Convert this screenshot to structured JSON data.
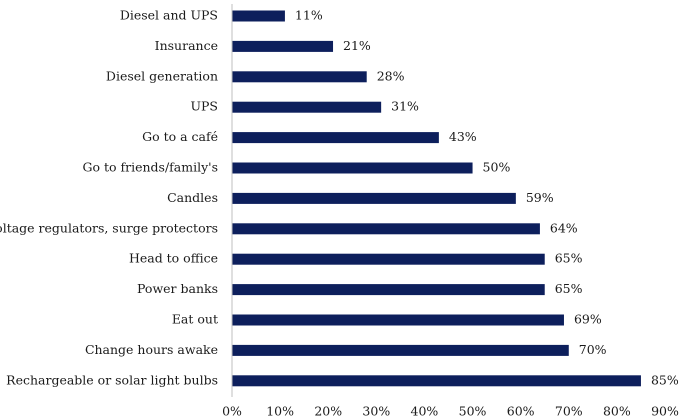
{
  "chart_data": {
    "type": "bar",
    "orientation": "horizontal",
    "title": "",
    "xlabel": "",
    "ylabel": "",
    "xlim": [
      0,
      90
    ],
    "grid": false,
    "bar_color": "#0d1f5c",
    "categories": [
      "Diesel and UPS",
      "Insurance",
      "Diesel generation",
      "UPS",
      "Go to a café",
      "Go to friends/family's",
      "Candles",
      "Voltage regulators, surge protectors",
      "Head to office",
      "Power banks",
      "Eat out",
      "Change hours awake",
      "Rechargeable or solar light bulbs"
    ],
    "values": [
      11,
      21,
      28,
      31,
      43,
      50,
      59,
      64,
      65,
      65,
      69,
      70,
      85
    ],
    "value_labels": [
      "11%",
      "21%",
      "28%",
      "31%",
      "43%",
      "50%",
      "59%",
      "64%",
      "65%",
      "65%",
      "69%",
      "70%",
      "85%"
    ],
    "ticks": [
      0,
      10,
      20,
      30,
      40,
      50,
      60,
      70,
      80,
      90
    ],
    "tick_labels": [
      "0%",
      "10%",
      "20%",
      "30%",
      "40%",
      "50%",
      "60%",
      "70%",
      "80%",
      "90%"
    ]
  }
}
